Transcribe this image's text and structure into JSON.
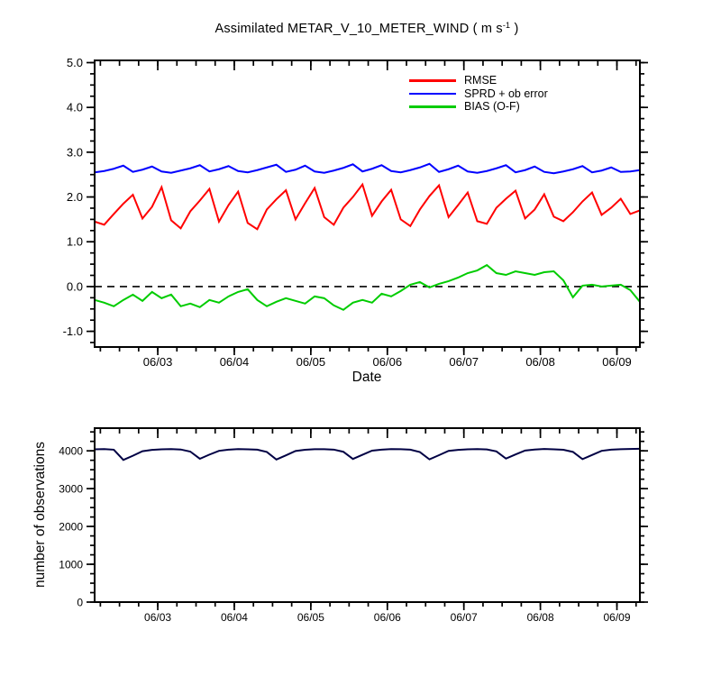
{
  "title": {
    "part1": "Assimilated METAR_V_10_METER_WIND ( m s",
    "sup": "-1",
    "part2": " )"
  },
  "colors": {
    "rmse": "#ff0000",
    "sprd": "#0000ff",
    "bias": "#00cc00",
    "observations": "#000044",
    "axis": "#000000",
    "background": "#ffffff"
  },
  "chart_data": [
    {
      "type": "line",
      "title": "Assimilated METAR_V_10_METER_WIND ( m s⁻¹ )",
      "xlabel": "Date",
      "ylabel": "",
      "legend_position": "top-right",
      "grid": false,
      "xlim": [
        0,
        7.125
      ],
      "ylim": [
        -1.35,
        5.05
      ],
      "xticks": [
        0.825,
        1.825,
        2.825,
        3.825,
        4.825,
        5.825,
        6.825
      ],
      "xtick_labels": [
        "06/03",
        "06/04",
        "06/05",
        "06/06",
        "06/07",
        "06/08",
        "06/09"
      ],
      "x_minor_start": 0.075,
      "x_minor_step": 0.25,
      "yticks": [
        -1,
        0,
        1,
        2,
        3,
        4,
        5
      ],
      "ytick_labels": [
        "-1.0",
        "0.0",
        "1.0",
        "2.0",
        "3.0",
        "4.0",
        "5.0"
      ],
      "y_minor_step": 0.25,
      "tick_font_size": 13,
      "zero_line_y": 0,
      "x_start": 0,
      "x_step": 0.125,
      "series": [
        {
          "name": "RMSE",
          "color": "#ff0000",
          "values": [
            1.45,
            1.38,
            1.62,
            1.85,
            2.05,
            1.52,
            1.78,
            2.22,
            1.48,
            1.3,
            1.68,
            1.92,
            2.18,
            1.45,
            1.82,
            2.12,
            1.42,
            1.28,
            1.72,
            1.95,
            2.15,
            1.5,
            1.86,
            2.2,
            1.55,
            1.38,
            1.76,
            2.0,
            2.28,
            1.58,
            1.9,
            2.16,
            1.5,
            1.35,
            1.72,
            2.02,
            2.26,
            1.55,
            1.82,
            2.1,
            1.46,
            1.4,
            1.76,
            1.96,
            2.14,
            1.52,
            1.72,
            2.06,
            1.56,
            1.46,
            1.66,
            1.9,
            2.1,
            1.6,
            1.76,
            1.96,
            1.62,
            1.7
          ]
        },
        {
          "name": "SPRD + ob error",
          "color": "#0000ff",
          "values": [
            2.55,
            2.58,
            2.63,
            2.7,
            2.56,
            2.61,
            2.68,
            2.57,
            2.54,
            2.59,
            2.64,
            2.71,
            2.57,
            2.62,
            2.69,
            2.58,
            2.55,
            2.6,
            2.66,
            2.72,
            2.56,
            2.61,
            2.7,
            2.57,
            2.54,
            2.59,
            2.65,
            2.73,
            2.57,
            2.63,
            2.71,
            2.58,
            2.55,
            2.6,
            2.66,
            2.74,
            2.56,
            2.62,
            2.7,
            2.57,
            2.54,
            2.58,
            2.64,
            2.71,
            2.55,
            2.6,
            2.68,
            2.56,
            2.53,
            2.57,
            2.62,
            2.69,
            2.55,
            2.59,
            2.66,
            2.56,
            2.57,
            2.6
          ]
        },
        {
          "name": "BIAS (O-F)",
          "color": "#00cc00",
          "values": [
            -0.3,
            -0.36,
            -0.44,
            -0.3,
            -0.18,
            -0.32,
            -0.12,
            -0.26,
            -0.18,
            -0.44,
            -0.38,
            -0.46,
            -0.3,
            -0.36,
            -0.22,
            -0.12,
            -0.06,
            -0.3,
            -0.44,
            -0.34,
            -0.26,
            -0.32,
            -0.38,
            -0.22,
            -0.26,
            -0.42,
            -0.52,
            -0.36,
            -0.3,
            -0.36,
            -0.16,
            -0.22,
            -0.1,
            0.04,
            0.1,
            -0.02,
            0.06,
            0.12,
            0.2,
            0.3,
            0.36,
            0.48,
            0.3,
            0.26,
            0.34,
            0.3,
            0.26,
            0.32,
            0.34,
            0.14,
            -0.24,
            0.02,
            0.04,
            0.0,
            0.02,
            0.04,
            -0.08,
            -0.34
          ]
        }
      ]
    },
    {
      "type": "line",
      "title": "",
      "xlabel": "",
      "ylabel": "number of observations",
      "grid": false,
      "xlim": [
        0,
        7.125
      ],
      "ylim": [
        0,
        4600
      ],
      "xticks": [
        0.825,
        1.825,
        2.825,
        3.825,
        4.825,
        5.825,
        6.825
      ],
      "xtick_labels": [
        "06/03",
        "06/04",
        "06/05",
        "06/06",
        "06/07",
        "06/08",
        "06/09"
      ],
      "x_minor_start": 0.075,
      "x_minor_step": 0.25,
      "yticks": [
        0,
        1000,
        2000,
        3000,
        4000
      ],
      "ytick_labels": [
        "0",
        "1000",
        "2000",
        "3000",
        "4000"
      ],
      "y_minor_step": 250,
      "tick_font_size": 12,
      "x_start": 0,
      "x_step": 0.125,
      "series": [
        {
          "name": "number of observations",
          "color": "#000044",
          "values": [
            4040,
            4045,
            4030,
            3760,
            3870,
            3990,
            4025,
            4040,
            4045,
            4035,
            3980,
            3790,
            3900,
            4000,
            4030,
            4045,
            4040,
            4030,
            3970,
            3770,
            3880,
            3995,
            4028,
            4042,
            4044,
            4032,
            3975,
            3785,
            3895,
            4005,
            4032,
            4046,
            4042,
            4030,
            3968,
            3775,
            3885,
            3998,
            4026,
            4040,
            4045,
            4036,
            3985,
            3795,
            3905,
            4008,
            4034,
            4048,
            4040,
            4028,
            3972,
            3780,
            3890,
            4000,
            4030,
            4044,
            4050,
            4055
          ]
        }
      ]
    }
  ]
}
